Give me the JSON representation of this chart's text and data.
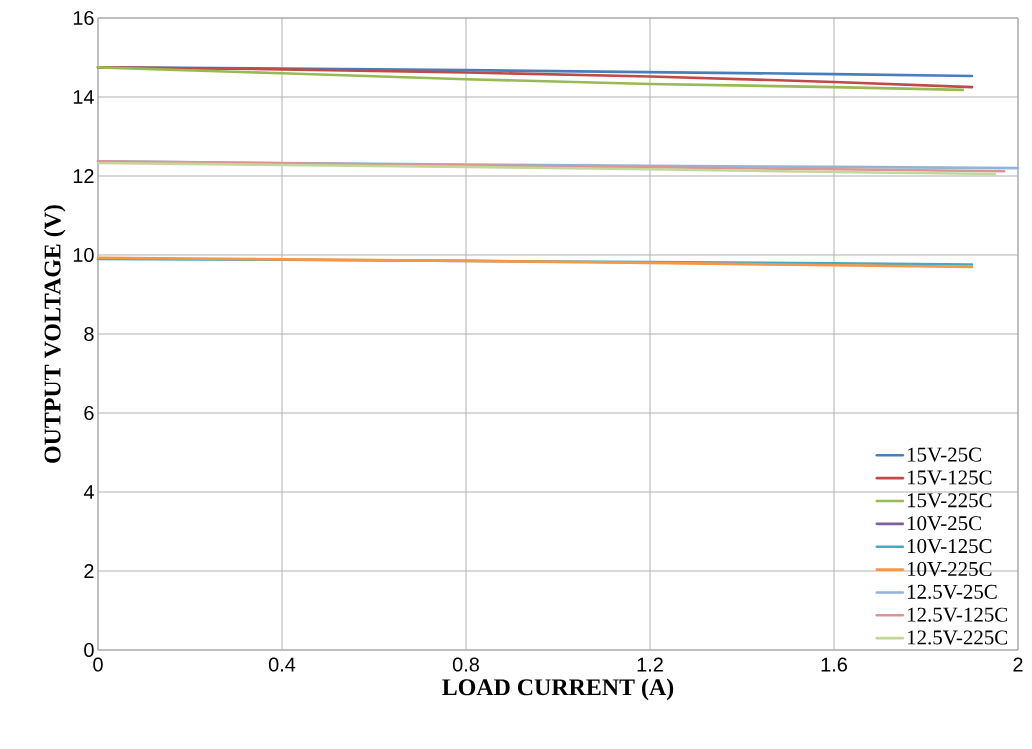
{
  "chart_data": {
    "type": "line",
    "xlabel": "LOAD CURRENT (A)",
    "ylabel": "OUTPUT VOLTAGE (V)",
    "xlim": [
      0,
      2
    ],
    "ylim": [
      0,
      16
    ],
    "xticks": [
      0,
      0.4,
      0.8,
      1.2,
      1.6,
      2
    ],
    "yticks": [
      0,
      2,
      4,
      6,
      8,
      10,
      12,
      14,
      16
    ],
    "grid": true,
    "legend": "bottom right",
    "marker": "none",
    "line_style": "solid",
    "series": [
      {
        "name": "15V-25C",
        "color": "#4a7ebb",
        "x": [
          0,
          0.4,
          0.8,
          1.2,
          1.6,
          1.9
        ],
        "values": [
          14.75,
          14.72,
          14.68,
          14.63,
          14.58,
          14.53
        ]
      },
      {
        "name": "15V-125C",
        "color": "#be4b48",
        "x": [
          0,
          0.4,
          0.8,
          1.2,
          1.6,
          1.9
        ],
        "values": [
          14.75,
          14.7,
          14.62,
          14.52,
          14.38,
          14.25
        ]
      },
      {
        "name": "15V-225C",
        "color": "#98b954",
        "x": [
          0,
          0.4,
          0.8,
          1.2,
          1.6,
          1.88
        ],
        "values": [
          14.75,
          14.6,
          14.45,
          14.33,
          14.25,
          14.18
        ]
      },
      {
        "name": "10V-25C",
        "color": "#7d60a0",
        "values": [
          null,
          null,
          null,
          null,
          null,
          null
        ]
      },
      {
        "name": "10V-125C",
        "color": "#46aac5",
        "x": [
          0,
          0.4,
          0.8,
          1.2,
          1.6,
          1.9
        ],
        "values": [
          9.9,
          9.88,
          9.85,
          9.82,
          9.79,
          9.76
        ]
      },
      {
        "name": "10V-225C",
        "color": "#f79646",
        "x": [
          0,
          0.4,
          0.8,
          1.2,
          1.6,
          1.9
        ],
        "values": [
          9.93,
          9.89,
          9.85,
          9.8,
          9.74,
          9.7
        ]
      },
      {
        "name": "12.5V-25C",
        "color": "#95b3d7",
        "x": [
          0,
          0.4,
          0.8,
          1.2,
          1.6,
          2.0
        ],
        "values": [
          12.37,
          12.33,
          12.29,
          12.26,
          12.23,
          12.2
        ]
      },
      {
        "name": "12.5V-125C",
        "color": "#d99694",
        "x": [
          0,
          0.4,
          0.8,
          1.2,
          1.6,
          1.97
        ],
        "values": [
          12.37,
          12.32,
          12.27,
          12.22,
          12.17,
          12.12
        ]
      },
      {
        "name": "12.5V-225C",
        "color": "#c3d69b",
        "x": [
          0,
          0.4,
          0.8,
          1.2,
          1.6,
          1.95
        ],
        "values": [
          12.33,
          12.28,
          12.23,
          12.17,
          12.1,
          12.05
        ]
      }
    ]
  }
}
